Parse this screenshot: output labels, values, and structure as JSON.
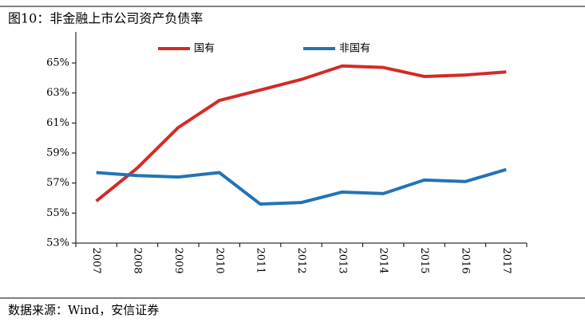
{
  "chart_data": {
    "type": "line",
    "title": "图10：非金融上市公司资产负债率",
    "source": "数据来源：Wind，安信证券",
    "categories": [
      "2007",
      "2008",
      "2009",
      "2010",
      "2011",
      "2012",
      "2013",
      "2014",
      "2015",
      "2016",
      "2017"
    ],
    "series": [
      {
        "name": "国有",
        "color": "#d42a26",
        "values": [
          55.8,
          58.0,
          60.7,
          62.5,
          63.2,
          63.9,
          64.8,
          64.7,
          64.1,
          64.2,
          64.4
        ]
      },
      {
        "name": "非国有",
        "color": "#2274b5",
        "values": [
          57.7,
          57.5,
          57.4,
          57.7,
          55.6,
          55.7,
          56.4,
          56.3,
          57.2,
          57.1,
          57.9
        ]
      }
    ],
    "ylim": [
      53,
      65
    ],
    "yticks": [
      {
        "value": 53,
        "label": "53%"
      },
      {
        "value": 55,
        "label": "55%"
      },
      {
        "value": 57,
        "label": "57%"
      },
      {
        "value": 59,
        "label": "59%"
      },
      {
        "value": 61,
        "label": "61%"
      },
      {
        "value": 63,
        "label": "63%"
      },
      {
        "value": 65,
        "label": "65%"
      }
    ],
    "legend": "top"
  }
}
